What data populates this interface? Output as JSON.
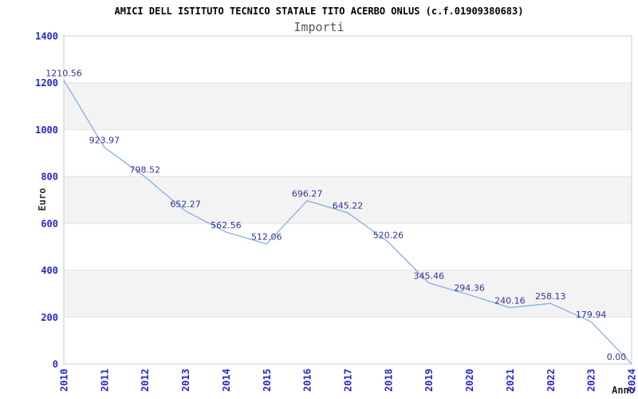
{
  "header": {
    "title": "AMICI DELL ISTITUTO TECNICO STATALE TITO ACERBO ONLUS (c.f.01909380683)",
    "subtitle": "Importi"
  },
  "axes": {
    "y_label": "Euro",
    "x_label": "Anno"
  },
  "chart_data": {
    "type": "line",
    "title": "Importi",
    "categories": [
      "2010",
      "2011",
      "2012",
      "2013",
      "2014",
      "2015",
      "2016",
      "2017",
      "2018",
      "2019",
      "2020",
      "2021",
      "2022",
      "2023",
      "2024"
    ],
    "series": [
      {
        "name": "Importi",
        "values": [
          1210.56,
          923.97,
          798.52,
          652.27,
          562.56,
          512.06,
          696.27,
          645.22,
          520.26,
          345.46,
          294.36,
          240.16,
          258.13,
          179.94,
          0.0
        ],
        "point_labels": [
          "1210.56",
          "923.97",
          "798.52",
          "652.27",
          "562.56",
          "512.06",
          "696.27",
          "645.22",
          "520.26",
          "345.46",
          "294.36",
          "240.16",
          "258.13",
          "179.94",
          "0.00"
        ]
      }
    ],
    "xlabel": "Anno",
    "ylabel": "Euro",
    "ylim": [
      0,
      1400
    ],
    "yticks": [
      0,
      200,
      400,
      600,
      800,
      1000,
      1200,
      1400
    ],
    "grid": "horizontal",
    "shaded_bands": [
      [
        200,
        400
      ],
      [
        600,
        800
      ],
      [
        1000,
        1200
      ]
    ],
    "legend_position": "none"
  },
  "colors": {
    "line": "#79abe2",
    "tick_label": "#2727cc",
    "point_label": "#333399",
    "band_fill": "#f3f3f3",
    "grid_line": "#e2e2e2",
    "plot_border": "#c9c9c9",
    "title": "#000000",
    "subtitle": "#555555",
    "axis_title": "#333333",
    "background": "#ffffff"
  }
}
